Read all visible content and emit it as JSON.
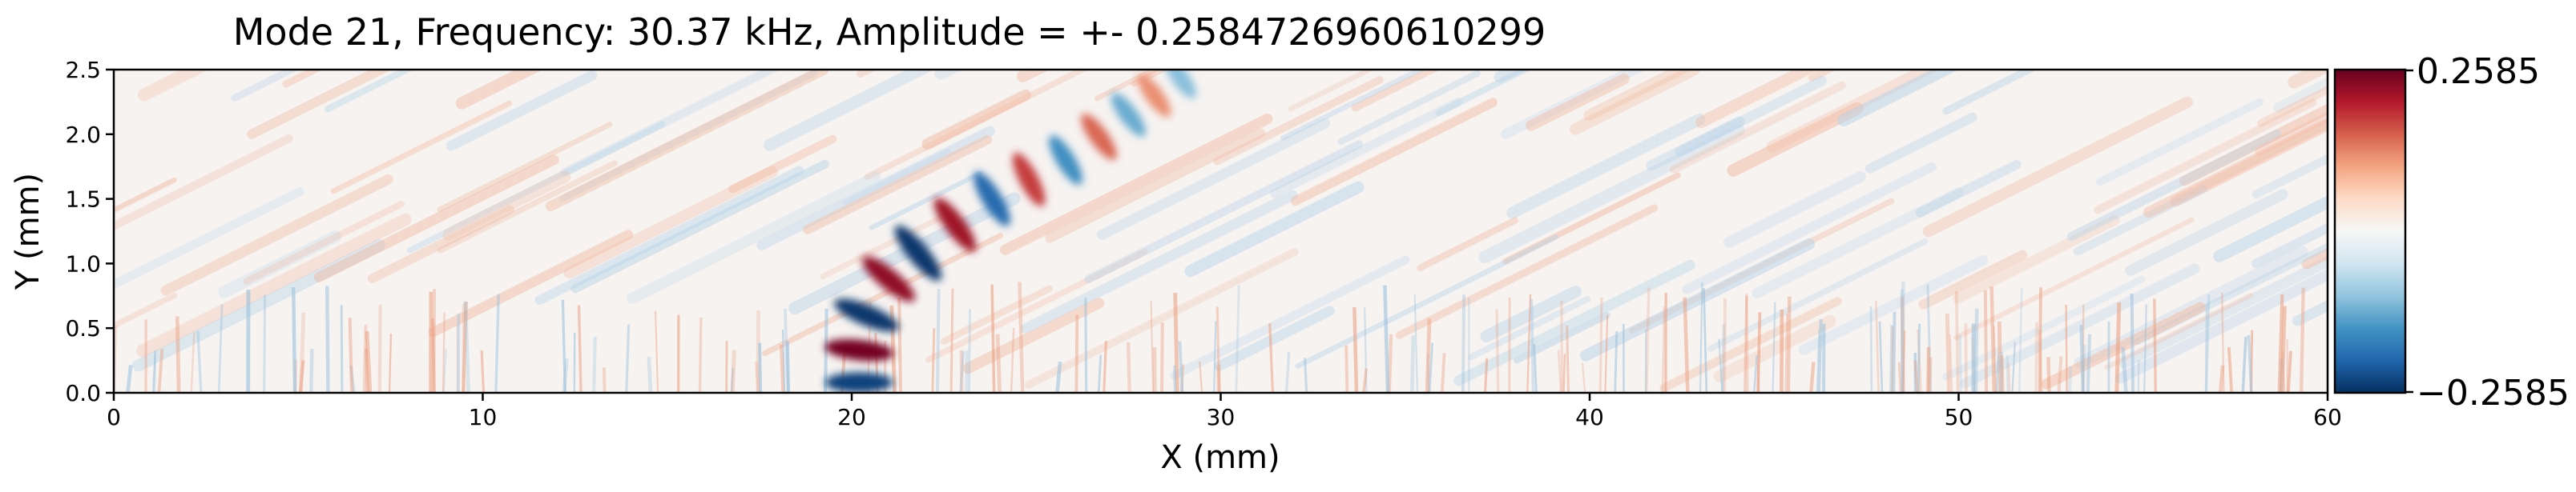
{
  "chart_data": {
    "type": "heatmap",
    "title": "Mode 21, Frequency: 30.37 kHz, Amplitude = +- 0.2584726960610299",
    "xlabel": "X (mm)",
    "ylabel": "Y (mm)",
    "xlim": [
      0,
      60
    ],
    "ylim": [
      0,
      2.5
    ],
    "x_ticks": [
      "0",
      "10",
      "20",
      "30",
      "40",
      "50",
      "60"
    ],
    "x_tick_values": [
      0,
      10,
      20,
      30,
      40,
      50,
      60
    ],
    "y_ticks": [
      "0.0",
      "0.5",
      "1.0",
      "1.5",
      "2.0",
      "2.5"
    ],
    "y_tick_values": [
      0,
      0.5,
      1.0,
      1.5,
      2.0,
      2.5
    ],
    "colormap": "RdBu_r",
    "colorbar": {
      "min_label": "−0.2585",
      "max_label": "0.2585",
      "min": -0.2585,
      "max": 0.2585
    },
    "grid": false,
    "mode_lobes": [
      {
        "x": 20.2,
        "y": 0.08,
        "value": -0.24
      },
      {
        "x": 20.2,
        "y": 0.33,
        "value": 0.25
      },
      {
        "x": 20.4,
        "y": 0.6,
        "value": -0.25
      },
      {
        "x": 21.0,
        "y": 0.88,
        "value": 0.23
      },
      {
        "x": 21.8,
        "y": 1.08,
        "value": -0.25
      },
      {
        "x": 22.8,
        "y": 1.3,
        "value": 0.22
      },
      {
        "x": 23.8,
        "y": 1.5,
        "value": -0.2
      },
      {
        "x": 24.8,
        "y": 1.65,
        "value": 0.18
      },
      {
        "x": 25.8,
        "y": 1.8,
        "value": -0.16
      },
      {
        "x": 26.7,
        "y": 1.98,
        "value": 0.15
      },
      {
        "x": 27.5,
        "y": 2.15,
        "value": -0.13
      },
      {
        "x": 28.2,
        "y": 2.3,
        "value": 0.12
      },
      {
        "x": 28.9,
        "y": 2.44,
        "value": -0.11
      }
    ]
  }
}
